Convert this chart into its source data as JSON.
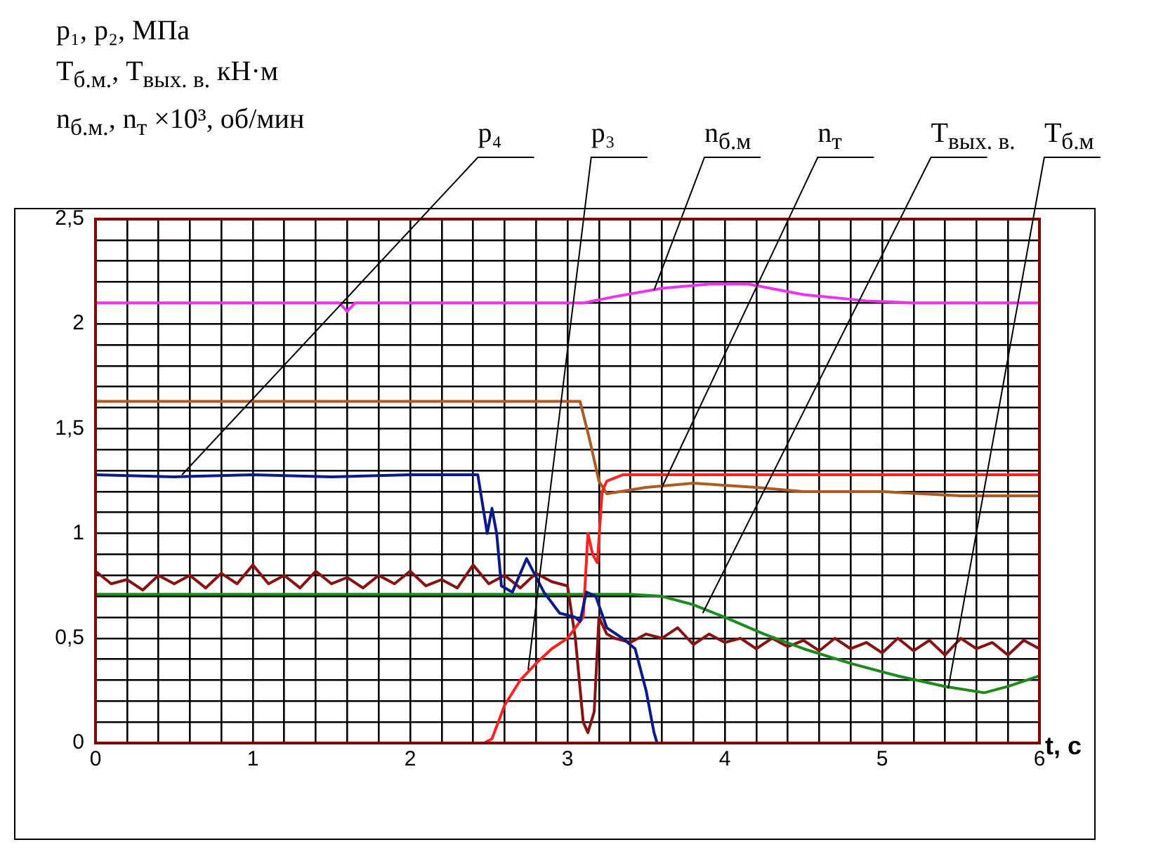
{
  "chart_data": {
    "type": "line",
    "ylabel": "p₁, p₂, МПа\nT$_{б.м.}$, T$_{вых. в.}$ кН·м\nn$_{б.м.}$, n$_{т}$ ×10³, об/мин",
    "xlabel": "t, c",
    "xlim": [
      0,
      6
    ],
    "ylim": [
      0,
      2.5
    ],
    "xticks": [
      0,
      {
        "value": 0.2,
        "label": null
      },
      {
        "value": 0.4,
        "label": null
      },
      {
        "value": 0.6,
        "label": null
      },
      {
        "value": 0.8,
        "label": null
      },
      1,
      {
        "value": 1.2,
        "label": null
      },
      {
        "value": 1.4,
        "label": null
      },
      {
        "value": 1.6,
        "label": null
      },
      {
        "value": 1.8,
        "label": null
      },
      2,
      {
        "value": 2.2,
        "label": null
      },
      {
        "value": 2.4,
        "label": null
      },
      {
        "value": 2.6,
        "label": null
      },
      {
        "value": 2.8,
        "label": null
      },
      3,
      {
        "value": 3.2,
        "label": null
      },
      {
        "value": 3.4,
        "label": null
      },
      {
        "value": 3.6,
        "label": null
      },
      {
        "value": 3.8,
        "label": null
      },
      4,
      {
        "value": 4.2,
        "label": null
      },
      {
        "value": 4.4,
        "label": null
      },
      {
        "value": 4.6,
        "label": null
      },
      {
        "value": 4.8,
        "label": null
      },
      5,
      {
        "value": 5.2,
        "label": null
      },
      {
        "value": 5.4,
        "label": null
      },
      {
        "value": 5.6,
        "label": null
      },
      {
        "value": 5.8,
        "label": null
      },
      6
    ],
    "yticks": [
      0,
      {
        "value": 0.1,
        "label": null
      },
      {
        "value": 0.2,
        "label": null
      },
      {
        "value": 0.3,
        "label": null
      },
      {
        "value": 0.4,
        "label": null
      },
      {
        "value": 0.5,
        "label": "0,5"
      },
      {
        "value": 0.6,
        "label": null
      },
      {
        "value": 0.7,
        "label": null
      },
      {
        "value": 0.8,
        "label": null
      },
      {
        "value": 0.9,
        "label": null
      },
      1,
      {
        "value": 1.1,
        "label": null
      },
      {
        "value": 1.2,
        "label": null
      },
      {
        "value": 1.3,
        "label": null
      },
      {
        "value": 1.4,
        "label": null
      },
      {
        "value": 1.5,
        "label": "1,5"
      },
      {
        "value": 1.6,
        "label": null
      },
      {
        "value": 1.7,
        "label": null
      },
      {
        "value": 1.8,
        "label": null
      },
      {
        "value": 1.9,
        "label": null
      },
      2,
      {
        "value": 2.1,
        "label": null
      },
      {
        "value": 2.2,
        "label": null
      },
      {
        "value": 2.3,
        "label": null
      },
      {
        "value": 2.4,
        "label": null
      },
      {
        "value": 2.5,
        "label": "2,5"
      }
    ],
    "grid": true,
    "marker": "none",
    "line_style": "solid",
    "series": [
      {
        "color": "#0a1a8c",
        "x": [
          0,
          0.5,
          1,
          1.5,
          2,
          2.43,
          2.49,
          2.52,
          2.55,
          2.58,
          2.65,
          2.74,
          2.85,
          2.95,
          3.05,
          3.08,
          3.12,
          3.18,
          3.25,
          3.35,
          3.43,
          3.5,
          3.55,
          3.57
        ],
        "values": [
          1.28,
          1.27,
          1.28,
          1.27,
          1.28,
          1.28,
          1.0,
          1.12,
          1.0,
          0.75,
          0.72,
          0.88,
          0.72,
          0.62,
          0.6,
          0.58,
          0.72,
          0.7,
          0.55,
          0.5,
          0.45,
          0.25,
          0.05,
          0
        ]
      },
      {
        "color": "#ff2020",
        "x": [
          2.47,
          2.52,
          2.6,
          2.7,
          2.8,
          2.9,
          3.0,
          3.05,
          3.1,
          3.13,
          3.16,
          3.19,
          3.22,
          3.25,
          3.35,
          4,
          5,
          6
        ],
        "values": [
          0,
          0.02,
          0.18,
          0.3,
          0.38,
          0.45,
          0.5,
          0.55,
          0.6,
          1.0,
          0.9,
          0.86,
          1.2,
          1.25,
          1.28,
          1.28,
          1.28,
          1.28
        ]
      },
      {
        "color": "#ee33ee",
        "x": [
          0,
          1.55,
          1.6,
          1.65,
          3.1,
          3.3,
          3.6,
          3.9,
          4.15,
          4.5,
          4.9,
          5.2,
          6
        ],
        "values": [
          2.1,
          2.1,
          2.06,
          2.1,
          2.1,
          2.13,
          2.17,
          2.19,
          2.19,
          2.14,
          2.11,
          2.1,
          2.1
        ]
      },
      {
        "color": "#b05a20",
        "x": [
          0,
          3.08,
          3.14,
          3.2,
          3.25,
          3.5,
          3.8,
          4.2,
          4.5,
          5,
          5.5,
          6
        ],
        "values": [
          1.63,
          1.63,
          1.45,
          1.25,
          1.19,
          1.22,
          1.24,
          1.22,
          1.2,
          1.2,
          1.18,
          1.18
        ]
      },
      {
        "color": "#1a8c1a",
        "x": [
          0,
          3.4,
          3.6,
          3.8,
          4,
          4.25,
          4.5,
          4.8,
          5.1,
          5.4,
          5.65,
          5.8,
          6
        ],
        "values": [
          0.71,
          0.71,
          0.7,
          0.66,
          0.6,
          0.52,
          0.45,
          0.38,
          0.32,
          0.27,
          0.24,
          0.27,
          0.32
        ]
      },
      {
        "color": "#8b1010",
        "x": [
          0,
          0.1,
          0.2,
          0.3,
          0.4,
          0.5,
          0.6,
          0.7,
          0.8,
          0.9,
          1,
          1.1,
          1.2,
          1.3,
          1.4,
          1.5,
          1.6,
          1.7,
          1.8,
          1.9,
          2,
          2.1,
          2.2,
          2.3,
          2.4,
          2.5,
          2.6,
          2.7,
          2.8,
          2.9,
          3.0,
          3.05,
          3.1,
          3.13,
          3.17,
          3.2,
          3.25,
          3.3,
          3.4,
          3.5,
          3.6,
          3.7,
          3.8,
          3.9,
          4,
          4.1,
          4.2,
          4.3,
          4.4,
          4.5,
          4.6,
          4.7,
          4.8,
          4.9,
          5,
          5.1,
          5.2,
          5.3,
          5.4,
          5.5,
          5.6,
          5.7,
          5.8,
          5.9,
          6
        ],
        "values": [
          0.82,
          0.76,
          0.78,
          0.73,
          0.8,
          0.76,
          0.8,
          0.74,
          0.81,
          0.76,
          0.85,
          0.76,
          0.8,
          0.74,
          0.82,
          0.76,
          0.79,
          0.74,
          0.8,
          0.76,
          0.82,
          0.75,
          0.78,
          0.74,
          0.85,
          0.76,
          0.8,
          0.74,
          0.81,
          0.77,
          0.75,
          0.5,
          0.1,
          0.05,
          0.15,
          0.6,
          0.52,
          0.5,
          0.48,
          0.52,
          0.5,
          0.55,
          0.47,
          0.52,
          0.48,
          0.5,
          0.45,
          0.5,
          0.46,
          0.49,
          0.44,
          0.5,
          0.45,
          0.48,
          0.43,
          0.5,
          0.44,
          0.49,
          0.42,
          0.5,
          0.45,
          0.48,
          0.42,
          0.49,
          0.45
        ]
      }
    ],
    "annotations": [
      {
        "text": "p₄",
        "x": 0.55,
        "y": 1.28
      },
      {
        "text": "p₃",
        "x": 2.75,
        "y": 0.35
      },
      {
        "text": "n$_{б.м}$",
        "x": 3.55,
        "y": 2.16
      },
      {
        "text": "n$_{т}$",
        "x": 3.6,
        "y": 1.22
      },
      {
        "text": "T$_{вых. в.}$",
        "x": 3.86,
        "y": 0.62
      },
      {
        "text": "T$_{б.м}$",
        "x": 5.42,
        "y": 0.26
      }
    ]
  }
}
